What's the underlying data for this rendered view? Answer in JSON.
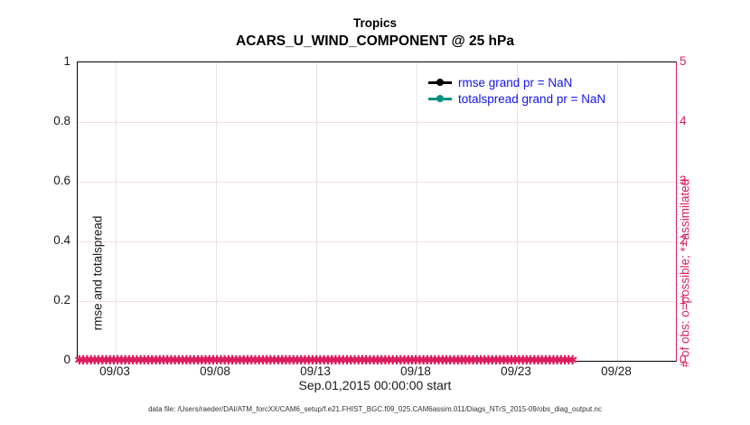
{
  "figure": {
    "title_line1": "Tropics",
    "title_line2": "ACARS_U_WIND_COMPONENT @ 25 hPa",
    "xlabel": "Sep.01,2015 00:00:00 start",
    "footer": "data file: /Users/raeder/DAI/ATM_forcXX/CAM6_setup/f.e21.FHIST_BGC.f09_025.CAM6assim.011/Diags_NTrS_2015-09/obs_diag_output.nc"
  },
  "legend": {
    "text_color": "#1414EE",
    "items": [
      {
        "label": "rmse grand pr = NaN",
        "color": "#000000"
      },
      {
        "label": "totalspread grand pr = NaN",
        "color": "#0D8F85"
      }
    ]
  },
  "colors": {
    "right_axis": "#DC1C5C",
    "rmse_line": "#000000",
    "totalspread_line": "#0D8F85",
    "legend_text": "#1414EE"
  },
  "chart_data": {
    "type": "line",
    "title": "Tropics",
    "subtitle": "ACARS_U_WIND_COMPONENT @ 25 hPa",
    "xlabel": "Sep.01,2015 00:00:00 start",
    "x_tick_labels": [
      "09/03",
      "09/08",
      "09/13",
      "09/18",
      "09/23",
      "09/28"
    ],
    "x_range_days": [
      "2015-09-01",
      "2015-09-30"
    ],
    "grid": true,
    "left_axis": {
      "label": "rmse and totalspread",
      "ticks": [
        "1",
        "0.8",
        "0.6",
        "0.4",
        "0.2",
        "0"
      ],
      "range": [
        0,
        1
      ],
      "color": "#000000"
    },
    "right_axis": {
      "label": "# of obs: o=possible; *=assimilated",
      "ticks": [
        "5",
        "4",
        "3",
        "2",
        "1",
        "0"
      ],
      "range": [
        0,
        5
      ],
      "color": "#DC1C5C"
    },
    "series": [
      {
        "name": "rmse grand pr = NaN",
        "color": "#000000",
        "marker": "circle",
        "values": "NaN — no curve drawn"
      },
      {
        "name": "totalspread grand pr = NaN",
        "color": "#0D8F85",
        "marker": "circle",
        "values": "NaN — no curve drawn"
      },
      {
        "name": "# of obs (o=possible, *=assimilated)",
        "color": "#DC1C5C",
        "marker": "*",
        "constant_value": 0,
        "note": "dense overlapping markers at y=0 across the entire time range"
      }
    ],
    "obs_band": {
      "glyph": "✱",
      "repeat": 130
    }
  }
}
